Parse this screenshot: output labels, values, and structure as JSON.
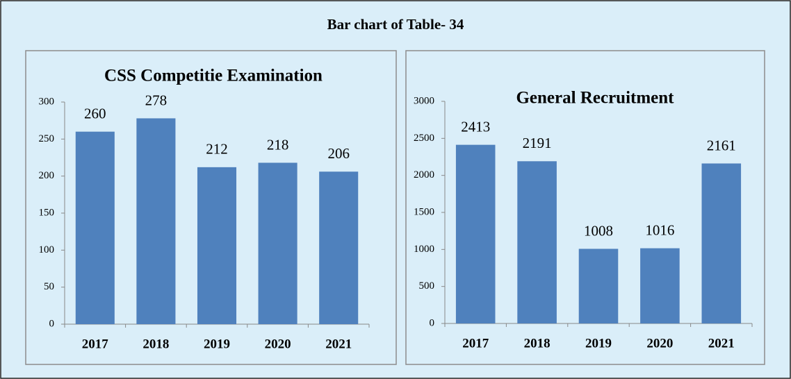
{
  "title": "Bar chart of Table- 34",
  "chart_data": [
    {
      "type": "bar",
      "title": "CSS Competitie Examination",
      "categories": [
        "2017",
        "2018",
        "2019",
        "2020",
        "2021"
      ],
      "values": [
        260,
        278,
        212,
        218,
        206
      ],
      "color": "#4f81bd",
      "ylim": [
        0,
        300
      ],
      "yticks": [
        0,
        50,
        100,
        150,
        200,
        250,
        300
      ],
      "grid": false
    },
    {
      "type": "bar",
      "title": "General Recruitment",
      "categories": [
        "2017",
        "2018",
        "2019",
        "2020",
        "2021"
      ],
      "values": [
        2413,
        2191,
        1008,
        1016,
        2161
      ],
      "color": "#4f81bd",
      "ylim": [
        0,
        3000
      ],
      "yticks": [
        0,
        500,
        1000,
        1500,
        2000,
        2500,
        3000
      ],
      "grid": false
    }
  ]
}
